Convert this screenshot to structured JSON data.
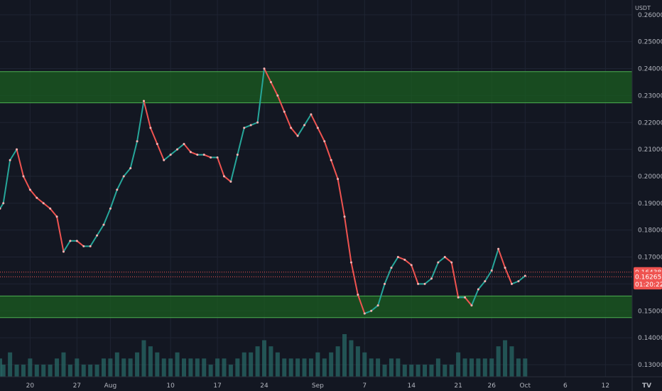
{
  "app": {
    "currency_unit": "USDT",
    "watermark": "TV"
  },
  "chart_data": {
    "type": "line",
    "title": "",
    "xlabel": "",
    "ylabel": "",
    "ylim": [
      0.1255,
      0.2655
    ],
    "grid": true,
    "y_ticks": [
      0.13,
      0.14,
      0.15,
      0.16,
      0.17,
      0.18,
      0.19,
      0.2,
      0.21,
      0.22,
      0.23,
      0.24,
      0.25,
      0.26
    ],
    "y_tick_labels": [
      "0.13000",
      "0.14000",
      "0.15000",
      "0.16000",
      "0.17000",
      "0.18000",
      "0.19000",
      "0.20000",
      "0.21000",
      "0.22000",
      "0.23000",
      "0.24000",
      "0.25000",
      "0.26000"
    ],
    "x_ticks": [
      "20",
      "27",
      "Aug",
      "10",
      "17",
      "24",
      "Sep",
      "7",
      "14",
      "21",
      "26",
      "Oct",
      "6",
      "12"
    ],
    "x_tick_positions": [
      20,
      27,
      32,
      41,
      48,
      55,
      63,
      70,
      77,
      84,
      89,
      94,
      100,
      106
    ],
    "xlim": [
      15.5,
      110
    ],
    "series": [
      {
        "x": [
          15.5,
          16,
          17,
          18,
          19,
          20,
          21,
          22,
          23,
          24,
          25,
          26,
          27,
          28,
          29,
          30,
          31,
          32,
          33,
          34,
          35,
          36,
          37,
          38,
          39,
          40,
          41,
          42,
          43,
          44,
          45,
          46,
          47,
          48,
          49,
          50,
          51,
          52,
          53,
          54,
          55,
          56,
          57,
          58,
          59,
          60,
          61,
          62,
          63,
          64,
          65,
          66,
          67,
          68,
          69,
          70,
          71,
          72,
          73,
          74,
          75,
          76,
          77,
          78,
          79,
          80,
          81,
          82,
          83,
          84,
          85,
          86,
          87,
          88,
          89,
          90,
          91,
          92,
          93,
          94
        ],
        "values": [
          0.188,
          0.19,
          0.206,
          0.21,
          0.2,
          0.195,
          0.192,
          0.19,
          0.188,
          0.185,
          0.172,
          0.176,
          0.176,
          0.174,
          0.174,
          0.178,
          0.182,
          0.188,
          0.195,
          0.2,
          0.203,
          0.213,
          0.228,
          0.218,
          0.212,
          0.206,
          0.208,
          0.21,
          0.212,
          0.209,
          0.208,
          0.208,
          0.207,
          0.207,
          0.2,
          0.198,
          0.208,
          0.218,
          0.219,
          0.22,
          0.24,
          0.235,
          0.23,
          0.224,
          0.218,
          0.215,
          0.219,
          0.223,
          0.218,
          0.213,
          0.206,
          0.199,
          0.185,
          0.168,
          0.156,
          0.149,
          0.15,
          0.152,
          0.16,
          0.166,
          0.17,
          0.169,
          0.167,
          0.16,
          0.16,
          0.162,
          0.168,
          0.17,
          0.168,
          0.155,
          0.155,
          0.152,
          0.158,
          0.161,
          0.165,
          0.173,
          0.166,
          0.16,
          0.161,
          0.163
        ]
      }
    ],
    "volume": [
      3,
      2,
      4,
      2,
      2,
      3,
      2,
      2,
      2,
      3,
      4,
      2,
      3,
      2,
      2,
      2,
      3,
      3,
      4,
      3,
      3,
      4,
      6,
      5,
      4,
      3,
      3,
      4,
      3,
      3,
      3,
      3,
      2,
      3,
      3,
      2,
      3,
      4,
      4,
      5,
      6,
      5,
      4,
      3,
      3,
      3,
      3,
      3,
      4,
      3,
      4,
      5,
      7,
      6,
      5,
      4,
      3,
      3,
      2,
      3,
      3,
      2,
      2,
      2,
      2,
      2,
      3,
      2,
      2,
      4,
      3,
      3,
      3,
      3,
      3,
      5,
      6,
      5,
      3,
      3
    ],
    "zones": [
      {
        "from": 0.2273,
        "to": 0.2389,
        "color": "#1b5e20"
      },
      {
        "from": 0.1475,
        "to": 0.1555,
        "color": "#1b5e20"
      }
    ],
    "price_tags": [
      {
        "label": "0.16438",
        "value": 0.16438,
        "color": "#ef5350"
      },
      {
        "label": "0.16265",
        "value": 0.16265,
        "color": "#ef5350"
      },
      {
        "label": "01:20:22",
        "value": 0.1598,
        "color": "#ef5350"
      }
    ],
    "colors": {
      "background": "#131722",
      "grid": "#1f2433",
      "line": "#ef5350",
      "line_alt": "#26a69a",
      "zone_edge": "#4caf50",
      "volume": "#2a6d6a",
      "axis_text": "#b2b5be"
    }
  }
}
